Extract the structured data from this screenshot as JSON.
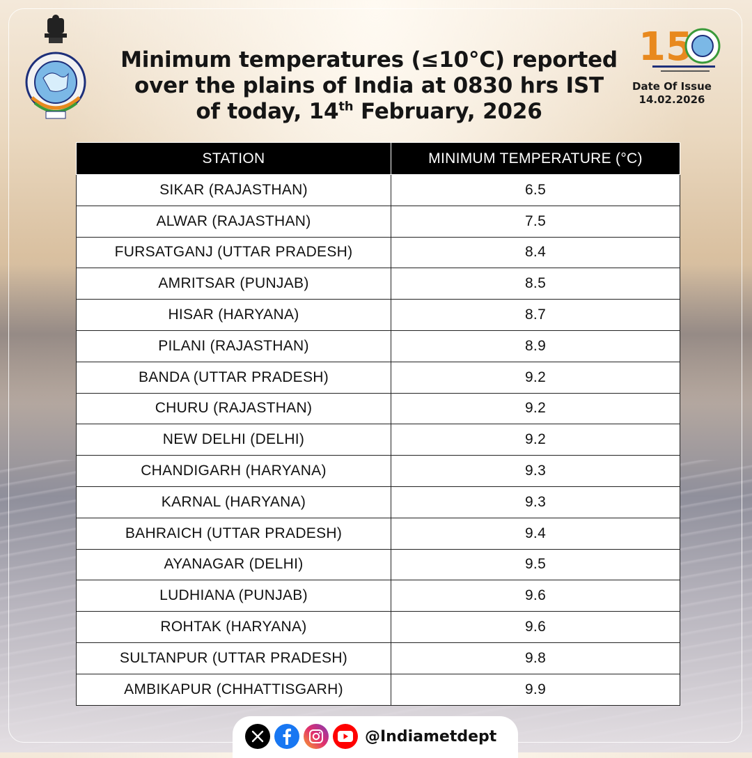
{
  "header": {
    "title_line1": "Minimum temperatures (≤10°C) reported",
    "title_line2": "over the plains of India at 0830 hrs IST",
    "title_line3_pre": "of today, 14",
    "title_line3_sup": "th",
    "title_line3_post": " February, 2026",
    "issue_label": "Date Of Issue",
    "issue_date": "14.02.2026",
    "anniversary_number": "150"
  },
  "table": {
    "columns": [
      "STATION",
      "MINIMUM TEMPERATURE (°C)"
    ],
    "rows": [
      {
        "station": "SIKAR (RAJASTHAN)",
        "temp": "6.5"
      },
      {
        "station": "ALWAR (RAJASTHAN)",
        "temp": "7.5"
      },
      {
        "station": "FURSATGANJ (UTTAR PRADESH)",
        "temp": "8.4"
      },
      {
        "station": "AMRITSAR (PUNJAB)",
        "temp": "8.5"
      },
      {
        "station": "HISAR (HARYANA)",
        "temp": "8.7"
      },
      {
        "station": "PILANI (RAJASTHAN)",
        "temp": "8.9"
      },
      {
        "station": "BANDA (UTTAR PRADESH)",
        "temp": "9.2"
      },
      {
        "station": "CHURU (RAJASTHAN)",
        "temp": "9.2"
      },
      {
        "station": "NEW DELHI (DELHI)",
        "temp": "9.2"
      },
      {
        "station": "CHANDIGARH (HARYANA)",
        "temp": "9.3"
      },
      {
        "station": "KARNAL (HARYANA)",
        "temp": "9.3"
      },
      {
        "station": "BAHRAICH (UTTAR PRADESH)",
        "temp": "9.4"
      },
      {
        "station": "AYANAGAR (DELHI)",
        "temp": "9.5"
      },
      {
        "station": "LUDHIANA (PUNJAB)",
        "temp": "9.6"
      },
      {
        "station": "ROHTAK (HARYANA)",
        "temp": "9.6"
      },
      {
        "station": "SULTANPUR (UTTAR PRADESH)",
        "temp": "9.8"
      },
      {
        "station": "AMBIKAPUR (CHHATTISGARH)",
        "temp": "9.9"
      }
    ]
  },
  "footer": {
    "icons": [
      "x-icon",
      "facebook-icon",
      "instagram-icon",
      "youtube-icon"
    ],
    "handle": "@Indiametdept"
  },
  "colors": {
    "header_bg": "#000000",
    "cell_bg": "#ffffff",
    "badge_orange": "#e8891e",
    "badge_green": "#3a9a3a",
    "facebook": "#1877f2",
    "youtube": "#ff0000"
  }
}
